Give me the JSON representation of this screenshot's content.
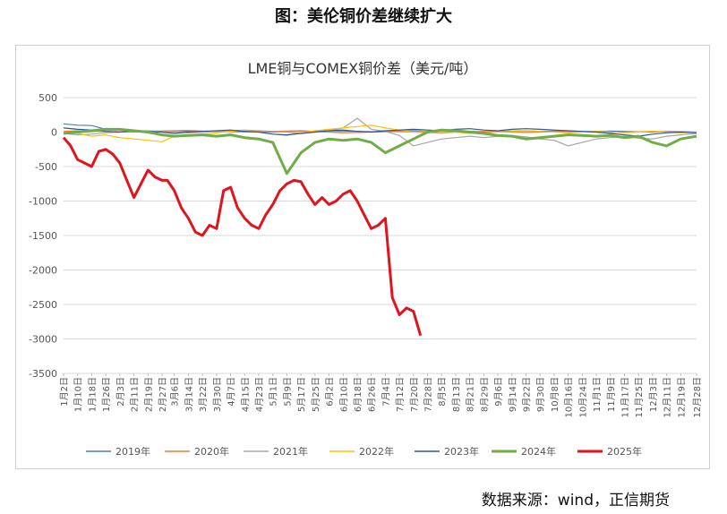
{
  "page": {
    "heading": "图：美伦铜价差继续扩大",
    "source": "数据来源：wind，正信期货"
  },
  "chart_data": {
    "type": "line",
    "title": "LME铜与COMEX铜价差（美元/吨）",
    "xlabel": "",
    "ylabel": "",
    "ylim": [
      -3500,
      500
    ],
    "yticks": [
      500,
      0,
      -500,
      -1000,
      -1500,
      -2000,
      -2500,
      -3000,
      -3500
    ],
    "xticks": [
      "1月2日",
      "1月10日",
      "1月18日",
      "1月26日",
      "2月3日",
      "2月11日",
      "2月19日",
      "2月27日",
      "3月6日",
      "3月14日",
      "3月22日",
      "3月30日",
      "4月7日",
      "4月15日",
      "4月23日",
      "5月1日",
      "5月9日",
      "5月17日",
      "5月25日",
      "6月2日",
      "6月10日",
      "6月18日",
      "6月26日",
      "7月4日",
      "7月12日",
      "7月20日",
      "7月28日",
      "8月5日",
      "8月13日",
      "8月21日",
      "8月29日",
      "9月6日",
      "9月14日",
      "9月22日",
      "9月30日",
      "10月8日",
      "10月16日",
      "10月24日",
      "11月1日",
      "11月9日",
      "11月17日",
      "11月25日",
      "12月3日",
      "12月11日",
      "12月19日",
      "12月28日"
    ],
    "grid": true,
    "legend_position": "bottom",
    "series": [
      {
        "name": "2019年",
        "color": "#4a7ebb",
        "x": [
          "1月2日",
          "1月10日",
          "1月18日",
          "1月26日",
          "2月3日",
          "2月11日",
          "2月19日",
          "2月27日",
          "3月6日",
          "3月14日",
          "3月22日",
          "3月30日",
          "4月7日",
          "4月15日",
          "4月23日",
          "5月1日",
          "5月9日",
          "5月17日",
          "5月25日",
          "6月2日",
          "6月10日",
          "6月18日",
          "6月26日",
          "7月4日",
          "7月12日",
          "7月20日",
          "7月28日",
          "8月5日",
          "8月13日",
          "8月21日",
          "8月29日",
          "9月6日",
          "9月14日",
          "9月22日",
          "9月30日",
          "10月8日",
          "10月16日",
          "10月24日",
          "11月1日",
          "11月9日",
          "11月17日",
          "11月25日",
          "12月3日",
          "12月11日",
          "12月19日",
          "12月28日"
        ],
        "values": [
          120,
          100,
          95,
          40,
          30,
          20,
          10,
          15,
          20,
          10,
          0,
          15,
          20,
          10,
          5,
          0,
          10,
          15,
          10,
          20,
          15,
          10,
          5,
          10,
          15,
          20,
          10,
          20,
          15,
          10,
          5,
          10,
          15,
          20,
          10,
          15,
          10,
          5,
          10,
          15,
          10,
          5,
          0,
          10,
          5,
          0
        ]
      },
      {
        "name": "2020年",
        "color": "#ed7d31",
        "x": [
          "1月2日",
          "1月10日",
          "1月18日",
          "1月26日",
          "2月3日",
          "2月11日",
          "2月19日",
          "2月27日",
          "3月6日",
          "3月14日",
          "3月22日",
          "3月30日",
          "4月7日",
          "4月15日",
          "4月23日",
          "5月1日",
          "5月9日",
          "5月17日",
          "5月25日",
          "6月2日",
          "6月10日",
          "6月18日",
          "6月26日",
          "7月4日",
          "7月12日",
          "7月20日",
          "7月28日",
          "8月5日",
          "8月13日",
          "8月21日",
          "8月29日",
          "9月6日",
          "9月14日",
          "9月22日",
          "9月30日",
          "10月8日",
          "10月16日",
          "10月24日",
          "11月1日",
          "11月9日",
          "11月17日",
          "11月25日",
          "12月3日",
          "12月11日",
          "12月19日",
          "12月28日"
        ],
        "values": [
          10,
          20,
          15,
          10,
          5,
          0,
          10,
          15,
          20,
          25,
          15,
          10,
          5,
          0,
          5,
          10,
          15,
          20,
          10,
          0,
          -10,
          -5,
          0,
          5,
          10,
          0,
          -5,
          -10,
          0,
          5,
          10,
          5,
          0,
          -5,
          0,
          5,
          10,
          5,
          0,
          -5,
          0,
          5,
          10,
          5,
          0,
          -5
        ]
      },
      {
        "name": "2021年",
        "color": "#a5a5a5",
        "x": [
          "1月2日",
          "1月10日",
          "1月18日",
          "1月26日",
          "2月3日",
          "2月11日",
          "2月19日",
          "2月27日",
          "3月6日",
          "3月14日",
          "3月22日",
          "3月30日",
          "4月7日",
          "4月15日",
          "4月23日",
          "5月1日",
          "5月9日",
          "5月17日",
          "5月25日",
          "6月2日",
          "6月10日",
          "6月18日",
          "6月26日",
          "7月4日",
          "7月12日",
          "7月20日",
          "7月28日",
          "8月5日",
          "8月13日",
          "8月21日",
          "8月29日",
          "9月6日",
          "9月14日",
          "9月22日",
          "9月30日",
          "10月8日",
          "10月16日",
          "10月24日",
          "11月1日",
          "11月9日",
          "11月17日",
          "11月25日",
          "12月3日",
          "12月11日",
          "12月19日",
          "12月28日"
        ],
        "values": [
          -20,
          -40,
          -30,
          -10,
          0,
          10,
          20,
          10,
          0,
          -10,
          0,
          10,
          20,
          30,
          20,
          10,
          0,
          -20,
          0,
          20,
          60,
          200,
          40,
          10,
          -50,
          -200,
          -150,
          -100,
          -80,
          -60,
          -80,
          -60,
          -50,
          -70,
          -100,
          -120,
          -200,
          -150,
          -100,
          -80,
          -60,
          -90,
          -100,
          -60,
          -40,
          -20
        ]
      },
      {
        "name": "2022年",
        "color": "#ffc000",
        "x": [
          "1月2日",
          "1月10日",
          "1月18日",
          "1月26日",
          "2月3日",
          "2月11日",
          "2月19日",
          "2月27日",
          "3月6日",
          "3月14日",
          "3月22日",
          "3月30日",
          "4月7日",
          "4月15日",
          "4月23日",
          "5月1日",
          "5月9日",
          "5月17日",
          "5月25日",
          "6月2日",
          "6月10日",
          "6月18日",
          "6月26日",
          "7月4日",
          "7月12日",
          "7月20日",
          "7月28日",
          "8月5日",
          "8月13日",
          "8月21日",
          "8月29日",
          "9月6日",
          "9月14日",
          "9月22日",
          "9月30日",
          "10月8日",
          "10月16日",
          "10月24日",
          "11月1日",
          "11月9日",
          "11月17日",
          "11月25日",
          "12月3日",
          "12月11日",
          "12月19日",
          "12月28日"
        ],
        "values": [
          0,
          -20,
          -60,
          -40,
          -80,
          -100,
          -120,
          -140,
          -60,
          -40,
          -30,
          -10,
          10,
          30,
          0,
          -30,
          -50,
          -10,
          20,
          40,
          60,
          80,
          100,
          60,
          30,
          0,
          10,
          20,
          0,
          -20,
          -10,
          0,
          10,
          20,
          10,
          0,
          -10,
          0,
          10,
          0,
          -10,
          0,
          10,
          0,
          -10,
          0
        ]
      },
      {
        "name": "2023年",
        "color": "#2e5597",
        "x": [
          "1月2日",
          "1月10日",
          "1月18日",
          "1月26日",
          "2月3日",
          "2月11日",
          "2月19日",
          "2月27日",
          "3月6日",
          "3月14日",
          "3月22日",
          "3月30日",
          "4月7日",
          "4月15日",
          "4月23日",
          "5月1日",
          "5月9日",
          "5月17日",
          "5月25日",
          "6月2日",
          "6月10日",
          "6月18日",
          "6月26日",
          "7月4日",
          "7月12日",
          "7月20日",
          "7月28日",
          "8月5日",
          "8月13日",
          "8月21日",
          "8月29日",
          "9月6日",
          "9月14日",
          "9月22日",
          "9月30日",
          "10月8日",
          "10月16日",
          "10月24日",
          "11月1日",
          "11月9日",
          "11月17日",
          "11月25日",
          "12月3日",
          "12月11日",
          "12月19日",
          "12月28日"
        ],
        "values": [
          60,
          40,
          30,
          10,
          0,
          20,
          10,
          0,
          -20,
          0,
          10,
          20,
          30,
          10,
          0,
          -30,
          -40,
          -20,
          0,
          20,
          30,
          10,
          0,
          20,
          30,
          40,
          30,
          20,
          40,
          50,
          30,
          20,
          40,
          50,
          40,
          30,
          20,
          10,
          0,
          -20,
          -40,
          -60,
          -30,
          -10,
          0,
          -10
        ]
      },
      {
        "name": "2024年",
        "color": "#70ad47",
        "x": [
          "1月2日",
          "1月10日",
          "1月18日",
          "1月26日",
          "2月3日",
          "2月11日",
          "2月19日",
          "2月27日",
          "3月6日",
          "3月14日",
          "3月22日",
          "3月30日",
          "4月7日",
          "4月15日",
          "4月23日",
          "5月1日",
          "5月9日",
          "5月17日",
          "5月25日",
          "6月2日",
          "6月10日",
          "6月18日",
          "6月26日",
          "7月4日",
          "7月12日",
          "7月20日",
          "7月28日",
          "8月5日",
          "8月13日",
          "8月21日",
          "8月29日",
          "9月6日",
          "9月14日",
          "9月22日",
          "9月30日",
          "10月8日",
          "10月16日",
          "10月24日",
          "11月1日",
          "11月9日",
          "11月17日",
          "11月25日",
          "12月3日",
          "12月11日",
          "12月19日",
          "12月28日"
        ],
        "values": [
          -20,
          0,
          20,
          40,
          40,
          20,
          0,
          -40,
          -60,
          -50,
          -40,
          -60,
          -40,
          -80,
          -100,
          -150,
          -600,
          -300,
          -150,
          -100,
          -120,
          -100,
          -150,
          -300,
          -200,
          -100,
          0,
          30,
          20,
          0,
          -20,
          -50,
          -60,
          -100,
          -80,
          -60,
          -40,
          -50,
          -60,
          -50,
          -80,
          -60,
          -150,
          -200,
          -100,
          -60
        ]
      },
      {
        "name": "2025年",
        "color": "#e0141e",
        "x": [
          "1月2日",
          "1月6日",
          "1月10日",
          "1月14日",
          "1月18日",
          "1月22日",
          "1月26日",
          "1月30日",
          "2月3日",
          "2月7日",
          "2月11日",
          "2月15日",
          "2月19日",
          "2月23日",
          "2月27日",
          "3月2日",
          "3月6日",
          "3月10日",
          "3月14日",
          "3月18日",
          "3月22日",
          "3月26日",
          "3月30日",
          "4月3日",
          "4月7日",
          "4月11日",
          "4月15日",
          "4月19日",
          "4月23日",
          "4月27日",
          "5月1日",
          "5月5日",
          "5月9日",
          "5月13日",
          "5月17日",
          "5月21日",
          "5月25日",
          "5月29日",
          "6月2日",
          "6月6日",
          "6月10日",
          "6月14日",
          "6月18日",
          "6月22日",
          "6月26日",
          "6月30日",
          "7月4日",
          "7月8日",
          "7月12日",
          "7月16日",
          "7月20日",
          "7月24日"
        ],
        "values": [
          -80,
          -200,
          -400,
          -450,
          -500,
          -280,
          -250,
          -320,
          -450,
          -700,
          -950,
          -750,
          -550,
          -650,
          -700,
          -700,
          -850,
          -1100,
          -1250,
          -1450,
          -1500,
          -1350,
          -1400,
          -850,
          -800,
          -1100,
          -1250,
          -1350,
          -1400,
          -1200,
          -1050,
          -850,
          -750,
          -700,
          -720,
          -900,
          -1050,
          -950,
          -1050,
          -1000,
          -900,
          -850,
          -1000,
          -1200,
          -1400,
          -1350,
          -1250,
          -2400,
          -2650,
          -2550,
          -2600,
          -2950
        ]
      }
    ]
  }
}
